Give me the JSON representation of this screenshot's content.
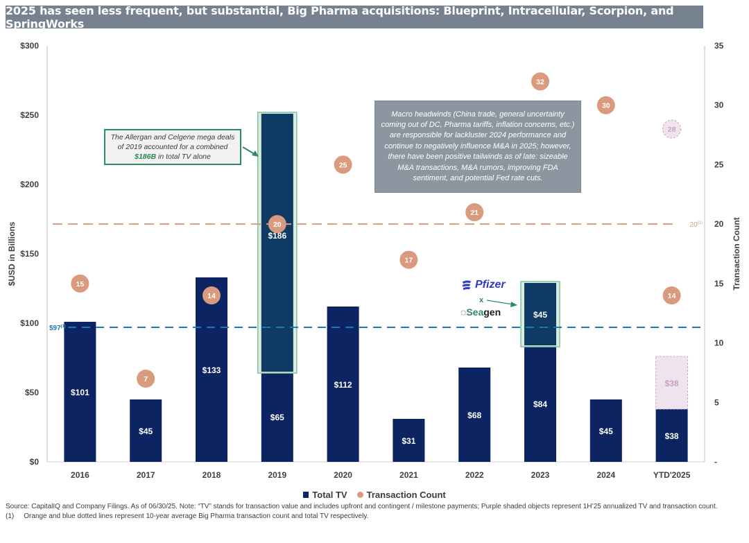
{
  "title": "2025 has seen less frequent, but substantial, Big Pharma acquisitions: Blueprint, Intracellular, Scorpion, and SpringWorks",
  "chart_data": {
    "type": "bar",
    "title": "2025 has seen less frequent, but substantial, Big Pharma acquisitions: Blueprint, Intracellular, Scorpion, and SpringWorks",
    "xlabel": "",
    "ylabel": "$USD in Billions",
    "y2label": "Transaction Count",
    "ylim": [
      0,
      300
    ],
    "y2lim": [
      0,
      35
    ],
    "yticks": [
      "$0",
      "$50",
      "$100",
      "$150",
      "$200",
      "$250",
      "$300"
    ],
    "yticks_values": [
      0,
      50,
      100,
      150,
      200,
      250,
      300
    ],
    "y2ticks": [
      "-",
      "5",
      "10",
      "15",
      "20",
      "25",
      "30",
      "35"
    ],
    "y2ticks_values": [
      0,
      5,
      10,
      15,
      20,
      25,
      30,
      35
    ],
    "categories": [
      "2016",
      "2017",
      "2018",
      "2019",
      "2020",
      "2021",
      "2022",
      "2023",
      "2024",
      "YTD'2025"
    ],
    "series": [
      {
        "name": "Total TV",
        "type": "bar",
        "color": "#0c2461",
        "values": [
          101,
          45,
          133,
          65,
          112,
          31,
          68,
          84,
          45,
          38
        ],
        "labels": [
          "$101",
          "$45",
          "$133",
          "$65",
          "$112",
          "$31",
          "$68",
          "$84",
          "$45",
          "$38"
        ]
      },
      {
        "name": "Mega deal TV (stacked highlight)",
        "type": "bar-stacked",
        "color": "#0e3a63",
        "values": [
          0,
          0,
          0,
          186,
          0,
          0,
          0,
          45,
          0,
          0
        ],
        "labels": [
          "",
          "",
          "",
          "$186",
          "",
          "",
          "",
          "$45",
          "",
          ""
        ]
      },
      {
        "name": "1H'25 annualized TV",
        "type": "bar-stacked-projected",
        "color": "#efe4ee",
        "values": [
          0,
          0,
          0,
          0,
          0,
          0,
          0,
          0,
          0,
          38
        ],
        "labels": [
          "",
          "",
          "",
          "",
          "",
          "",
          "",
          "",
          "",
          "$38"
        ]
      },
      {
        "name": "Transaction Count",
        "type": "scatter",
        "axis": "right",
        "color": "#d99a7d",
        "values": [
          15,
          7,
          14,
          20,
          25,
          17,
          21,
          32,
          30,
          14
        ]
      },
      {
        "name": "Annualized Transaction Count",
        "type": "scatter-projected",
        "axis": "right",
        "color": "#efe4ee",
        "values": [
          null,
          null,
          null,
          null,
          null,
          null,
          null,
          null,
          null,
          28
        ]
      }
    ],
    "reference_lines": [
      {
        "name": "10-year average total TV",
        "axis": "left",
        "value": 97,
        "label": "$97",
        "footnote": "(1)",
        "color": "#1f77b4"
      },
      {
        "name": "10-year average transaction count",
        "axis": "right",
        "value": 20,
        "label": "20",
        "footnote": "(1)",
        "color": "#d99a7d"
      }
    ],
    "legend": {
      "placement": "bottom",
      "entries": [
        "Total TV",
        "Transaction Count"
      ]
    },
    "grid": false
  },
  "annotations": {
    "allergan_celgene": {
      "line1": "The Allergan and Celgene mega deals",
      "line2": "of 2019 accounted for a combined",
      "highlight": "$186B",
      "line3_rest": " in total TV alone"
    },
    "macro": "Macro headwinds (China trade, general uncertainty coming out of DC, Pharma tariffs, inflation concerns, etc.) are responsible for lackluster 2024 performance and continue to negatively influence M&A in 2025; however, there have been positive tailwinds as of late: sizeable M&A transactions, M&A rumors, improving FDA sentiment, and potential Fed rate cuts.",
    "pfizer_seagen": {
      "company1": "Pfizer",
      "x": "x",
      "company2_prefix": "Sea",
      "company2_suffix": "gen"
    }
  },
  "legend": {
    "total_tv": "Total TV",
    "transaction_count": "Transaction Count"
  },
  "footnotes": {
    "source": "Source: CapitalIQ and Company Filings. As of 06/30/25. Note: “TV” stands for transaction value and includes upfront and contingent / milestone payments; Purple shaded objects represent 1H’25 annualized TV and transaction count.",
    "note_num": "(1)",
    "note_text": "Orange and blue dotted lines represent 10-year average Big Pharma transaction count and total TV respectively."
  }
}
